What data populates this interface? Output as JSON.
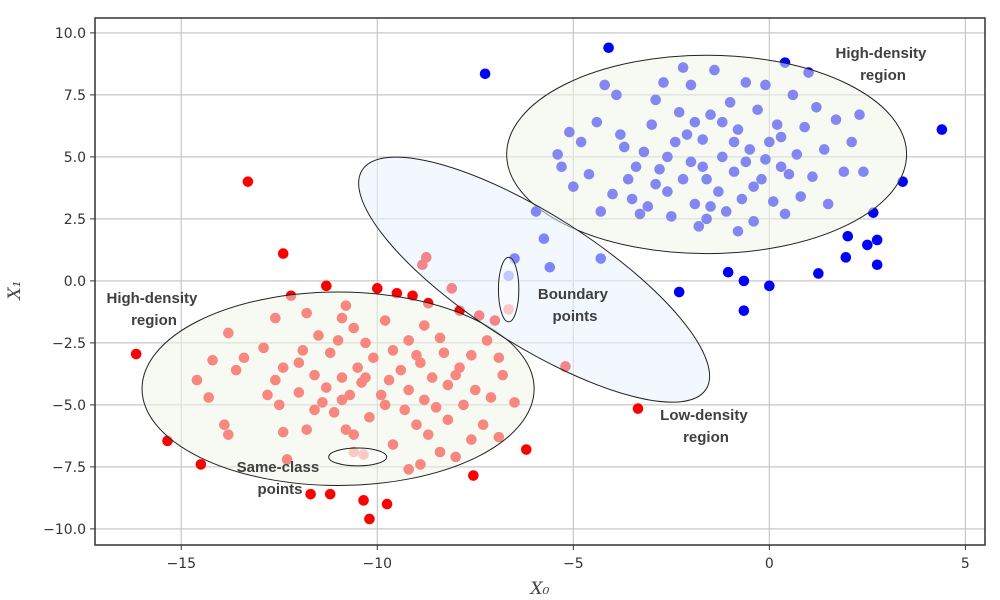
{
  "chart_data": {
    "type": "scatter",
    "xlabel": "X₀",
    "ylabel": "X₁",
    "xlim": [
      -17.2,
      5.5
    ],
    "ylim": [
      -10.65,
      10.6
    ],
    "xticks": [
      -15,
      -10,
      -5,
      0,
      5
    ],
    "xtick_labels": [
      "−15",
      "−10",
      "−5",
      "0",
      "5"
    ],
    "yticks": [
      10,
      7.5,
      5,
      2.5,
      0,
      -2.5,
      -5,
      -7.5,
      -10
    ],
    "ytick_labels": [
      "10.0",
      "7.5",
      "5.0",
      "2.5",
      "0.0",
      "−2.5",
      "−5.0",
      "−7.5",
      "−10.0"
    ],
    "grid": true,
    "colors": {
      "class_red": "#ff0000",
      "class_blue": "#0000ff",
      "high_density_fill": "#f1f6e8",
      "low_density_fill": "#e8f2fb",
      "outline": "#222222"
    },
    "series": [
      {
        "color": "#ff0000",
        "points": [
          [
            -13.3,
            4.0
          ],
          [
            -12.4,
            1.1
          ],
          [
            -16.15,
            -2.95
          ],
          [
            -15.35,
            -6.45
          ],
          [
            -14.5,
            -7.4
          ],
          [
            -11.7,
            -8.6
          ],
          [
            -11.2,
            -8.6
          ],
          [
            -10.35,
            -8.85
          ],
          [
            -10.2,
            -9.6
          ],
          [
            -9.75,
            -9.0
          ],
          [
            -7.55,
            -7.85
          ],
          [
            -6.2,
            -6.8
          ],
          [
            -5.2,
            -3.45
          ],
          [
            -3.35,
            -5.15
          ],
          [
            -8.75,
            0.95
          ],
          [
            -8.85,
            0.65
          ],
          [
            -12.2,
            -0.6
          ],
          [
            -11.8,
            -1.3
          ],
          [
            -12.6,
            -1.5
          ],
          [
            -13.8,
            -2.1
          ],
          [
            -12.9,
            -2.7
          ],
          [
            -13.4,
            -3.1
          ],
          [
            -14.2,
            -3.2
          ],
          [
            -14.6,
            -4.0
          ],
          [
            -13.6,
            -3.6
          ],
          [
            -14.3,
            -4.7
          ],
          [
            -13.9,
            -5.8
          ],
          [
            -13.8,
            -6.2
          ],
          [
            -12.6,
            -4.0
          ],
          [
            -12.4,
            -3.5
          ],
          [
            -12.0,
            -3.3
          ],
          [
            -11.9,
            -2.8
          ],
          [
            -11.5,
            -2.2
          ],
          [
            -11.2,
            -2.9
          ],
          [
            -11.6,
            -3.8
          ],
          [
            -11.3,
            -4.3
          ],
          [
            -10.9,
            -3.9
          ],
          [
            -10.8,
            -1.0
          ],
          [
            -10.6,
            -1.9
          ],
          [
            -10.3,
            -2.5
          ],
          [
            -10.1,
            -3.1
          ],
          [
            -10.5,
            -3.5
          ],
          [
            -10.9,
            -4.8
          ],
          [
            -11.1,
            -5.3
          ],
          [
            -11.6,
            -5.2
          ],
          [
            -12.0,
            -4.5
          ],
          [
            -12.5,
            -5.0
          ],
          [
            -12.8,
            -4.6
          ],
          [
            -11.8,
            -6.0
          ],
          [
            -12.3,
            -7.2
          ],
          [
            -10.8,
            -6.0
          ],
          [
            -10.6,
            -6.2
          ],
          [
            -10.2,
            -5.5
          ],
          [
            -9.9,
            -4.6
          ],
          [
            -9.7,
            -4.0
          ],
          [
            -9.4,
            -3.6
          ],
          [
            -9.6,
            -2.8
          ],
          [
            -9.2,
            -2.4
          ],
          [
            -9.8,
            -1.6
          ],
          [
            -9.5,
            -0.5
          ],
          [
            -9.1,
            -0.6
          ],
          [
            -8.7,
            -0.9
          ],
          [
            -8.8,
            -1.8
          ],
          [
            -8.4,
            -2.3
          ],
          [
            -8.9,
            -3.3
          ],
          [
            -8.6,
            -3.9
          ],
          [
            -8.2,
            -4.2
          ],
          [
            -8.8,
            -4.8
          ],
          [
            -9.3,
            -5.2
          ],
          [
            -9.0,
            -5.8
          ],
          [
            -8.7,
            -6.2
          ],
          [
            -9.6,
            -6.6
          ],
          [
            -8.4,
            -6.9
          ],
          [
            -8.9,
            -7.4
          ],
          [
            -9.2,
            -7.6
          ],
          [
            -8.0,
            -7.1
          ],
          [
            -8.2,
            -5.6
          ],
          [
            -7.8,
            -5.0
          ],
          [
            -7.5,
            -4.4
          ],
          [
            -7.9,
            -3.5
          ],
          [
            -7.6,
            -3.0
          ],
          [
            -7.2,
            -2.4
          ],
          [
            -7.4,
            -1.4
          ],
          [
            -7.9,
            -1.2
          ],
          [
            -8.1,
            -0.3
          ],
          [
            -7.0,
            -1.6
          ],
          [
            -6.9,
            -3.1
          ],
          [
            -6.8,
            -3.8
          ],
          [
            -6.5,
            -4.9
          ],
          [
            -7.1,
            -4.7
          ],
          [
            -7.3,
            -5.8
          ],
          [
            -7.6,
            -6.4
          ],
          [
            -6.9,
            -6.3
          ],
          [
            -10.0,
            -0.3
          ],
          [
            -11.3,
            -0.2
          ],
          [
            -10.4,
            -4.1
          ],
          [
            -10.7,
            -4.6
          ],
          [
            -9.2,
            -4.4
          ],
          [
            -9.0,
            -3.0
          ],
          [
            -10.3,
            -3.9
          ],
          [
            -11.0,
            -2.4
          ],
          [
            -8.3,
            -2.9
          ],
          [
            -8.0,
            -3.8
          ],
          [
            -8.5,
            -5.1
          ],
          [
            -9.8,
            -5.0
          ],
          [
            -10.9,
            -1.5
          ],
          [
            -12.4,
            -6.1
          ],
          [
            -11.4,
            -4.9
          ],
          [
            -6.65,
            -1.15
          ],
          [
            -10.6,
            -6.9
          ],
          [
            -10.35,
            -7.0
          ]
        ]
      },
      {
        "color": "#0000ff",
        "points": [
          [
            -7.25,
            8.35
          ],
          [
            -4.1,
            9.4
          ],
          [
            4.4,
            6.1
          ],
          [
            3.4,
            4.0
          ],
          [
            1.95,
            0.95
          ],
          [
            2.5,
            1.45
          ],
          [
            2.75,
            1.65
          ],
          [
            2.75,
            0.65
          ],
          [
            1.25,
            0.3
          ],
          [
            0.0,
            -0.2
          ],
          [
            -0.65,
            0.0
          ],
          [
            -0.65,
            -1.2
          ],
          [
            -2.3,
            -0.45
          ],
          [
            -1.05,
            0.35
          ],
          [
            -4.3,
            0.9
          ],
          [
            -5.6,
            0.55
          ],
          [
            -6.5,
            0.9
          ],
          [
            -5.75,
            1.7
          ],
          [
            -5.95,
            2.8
          ],
          [
            2.0,
            1.8
          ],
          [
            2.65,
            2.75
          ],
          [
            0.4,
            8.8
          ],
          [
            -5.4,
            5.1
          ],
          [
            -5.1,
            6.0
          ],
          [
            -5.3,
            4.6
          ],
          [
            -5.0,
            3.8
          ],
          [
            -4.8,
            5.6
          ],
          [
            -4.6,
            4.3
          ],
          [
            -4.3,
            2.8
          ],
          [
            -4.4,
            6.4
          ],
          [
            -4.2,
            7.9
          ],
          [
            -3.9,
            7.5
          ],
          [
            -3.8,
            5.9
          ],
          [
            -3.6,
            4.1
          ],
          [
            -3.5,
            3.3
          ],
          [
            -3.3,
            2.7
          ],
          [
            -3.2,
            5.2
          ],
          [
            -3.0,
            6.3
          ],
          [
            -2.9,
            7.3
          ],
          [
            -2.7,
            8.0
          ],
          [
            -2.8,
            4.5
          ],
          [
            -2.6,
            3.6
          ],
          [
            -2.5,
            2.6
          ],
          [
            -2.4,
            5.6
          ],
          [
            -2.3,
            6.8
          ],
          [
            -2.2,
            8.6
          ],
          [
            -2.0,
            7.9
          ],
          [
            -2.0,
            4.8
          ],
          [
            -1.9,
            3.1
          ],
          [
            -1.8,
            2.2
          ],
          [
            -1.7,
            5.7
          ],
          [
            -1.6,
            4.1
          ],
          [
            -1.5,
            6.7
          ],
          [
            -1.4,
            8.5
          ],
          [
            -1.3,
            3.6
          ],
          [
            -1.2,
            5.0
          ],
          [
            -1.1,
            2.8
          ],
          [
            -1.0,
            7.2
          ],
          [
            -0.9,
            4.4
          ],
          [
            -0.8,
            6.1
          ],
          [
            -0.7,
            3.3
          ],
          [
            -0.6,
            8.0
          ],
          [
            -0.5,
            5.3
          ],
          [
            -0.4,
            2.4
          ],
          [
            -0.3,
            6.9
          ],
          [
            -0.2,
            4.1
          ],
          [
            -0.1,
            7.9
          ],
          [
            0.0,
            5.6
          ],
          [
            0.1,
            3.2
          ],
          [
            0.2,
            6.3
          ],
          [
            0.3,
            4.6
          ],
          [
            0.4,
            2.7
          ],
          [
            0.6,
            7.5
          ],
          [
            0.7,
            5.1
          ],
          [
            0.8,
            3.4
          ],
          [
            0.9,
            6.2
          ],
          [
            1.1,
            4.2
          ],
          [
            1.2,
            7.0
          ],
          [
            1.4,
            5.3
          ],
          [
            1.5,
            3.1
          ],
          [
            1.7,
            6.5
          ],
          [
            1.9,
            4.4
          ],
          [
            2.1,
            5.6
          ],
          [
            2.3,
            6.7
          ],
          [
            1.0,
            8.4
          ],
          [
            -3.4,
            4.6
          ],
          [
            -2.9,
            3.9
          ],
          [
            -2.1,
            5.9
          ],
          [
            -1.7,
            4.6
          ],
          [
            -1.2,
            6.4
          ],
          [
            -0.9,
            5.6
          ],
          [
            -0.4,
            3.8
          ],
          [
            -1.5,
            3.0
          ],
          [
            -2.6,
            5.0
          ],
          [
            -3.1,
            3.0
          ],
          [
            -0.1,
            4.9
          ],
          [
            0.5,
            4.3
          ],
          [
            -2.2,
            4.1
          ],
          [
            -1.9,
            6.4
          ],
          [
            -0.6,
            4.8
          ],
          [
            0.3,
            5.8
          ],
          [
            -3.7,
            5.4
          ],
          [
            -4.0,
            3.5
          ],
          [
            2.4,
            4.4
          ],
          [
            -0.8,
            2.0
          ],
          [
            -1.6,
            2.5
          ],
          [
            -6.65,
            0.2
          ]
        ]
      }
    ],
    "regions": [
      {
        "kind": "high-density",
        "center": [
          -1.6,
          5.1
        ],
        "semi_axes": [
          5.1,
          4.0
        ],
        "angle_deg": 0
      },
      {
        "kind": "high-density",
        "center": [
          -11.0,
          -4.35
        ],
        "semi_axes": [
          5.0,
          3.9
        ],
        "angle_deg": 0
      },
      {
        "kind": "low-density",
        "center": [
          -6.0,
          0.05
        ],
        "semi_axes_xunits": [
          5.2,
          1.66
        ],
        "angle_deg": 32.5
      },
      {
        "kind": "boundary",
        "center": [
          -6.65,
          -0.35
        ],
        "semi_axes": [
          0.26,
          1.3
        ],
        "angle_deg": 0
      },
      {
        "kind": "same-class",
        "center": [
          -10.5,
          -7.1
        ],
        "semi_axes": [
          0.74,
          0.36
        ],
        "angle_deg": 0
      }
    ],
    "annotations": {
      "high_density_right": [
        "High-density",
        "region"
      ],
      "high_density_left": [
        "High-density",
        "region"
      ],
      "boundary": [
        "Boundary",
        "points"
      ],
      "low_density": [
        "Low-density",
        "region"
      ],
      "same_class": [
        "Same-class",
        "points"
      ]
    }
  }
}
